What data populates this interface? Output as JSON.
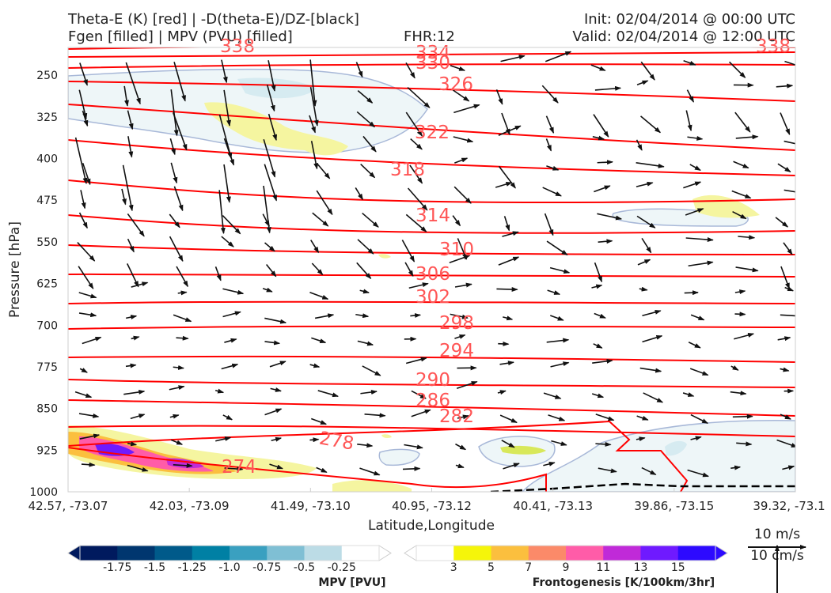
{
  "header": {
    "title_line1": "Theta-E (K) [red] | -D(theta-E)/DZ-[black]",
    "title_line2": "Fgen [filled] | MPV (PVU) [filled]",
    "fhr": "FHR:12",
    "init": "Init: 02/04/2014 @ 00:00 UTC",
    "valid": "Valid: 02/04/2014 @ 12:00 UTC"
  },
  "colors": {
    "theta_e": "#ff0000",
    "theta_e_label": "#ff5555",
    "vector": "#111111",
    "mpv": [
      "#001a5e",
      "#00366f",
      "#005a8a",
      "#0080a4",
      "#3aa0c0",
      "#7fbfd4",
      "#bcdce6",
      "#ffffff"
    ],
    "fgen": [
      "#ffffff",
      "#f5f50a",
      "#fbbf3e",
      "#fb8a69",
      "#ff5ca8",
      "#c02ad8",
      "#6f1aff",
      "#2d0aff"
    ]
  },
  "chart_data": {
    "type": "contour",
    "xlabel": "Latitude,Longitude",
    "ylabel": "Pressure [hPa]",
    "x_ticks": [
      "42.57, -73.07",
      "42.03, -73.09",
      "41.49, -73.10",
      "40.95, -73.12",
      "40.41, -73.13",
      "39.86, -73.15",
      "39.32, -73.1"
    ],
    "y_ticks": [
      250,
      325,
      400,
      475,
      550,
      625,
      700,
      775,
      850,
      925,
      1000
    ],
    "ylim": [
      1000,
      200
    ],
    "theta_e_labels": [
      "338",
      "334",
      "330",
      "326",
      "322",
      "318",
      "314",
      "310",
      "306",
      "302",
      "298",
      "294",
      "290",
      "286",
      "282",
      "278",
      "274",
      "338"
    ],
    "mpv_colorbar": {
      "label": "MPV [PVU]",
      "ticks": [
        "-1.75",
        "-1.5",
        "-1.25",
        "-1.0",
        "-0.75",
        "-0.5",
        "-0.25"
      ]
    },
    "fgen_colorbar": {
      "label": "Frontogenesis [K/100km/3hr]",
      "ticks": [
        "3",
        "5",
        "7",
        "9",
        "11",
        "13",
        "15"
      ]
    },
    "reference_vector": {
      "label_top": "10 m/s",
      "label_bottom": "10 cm/s"
    }
  }
}
